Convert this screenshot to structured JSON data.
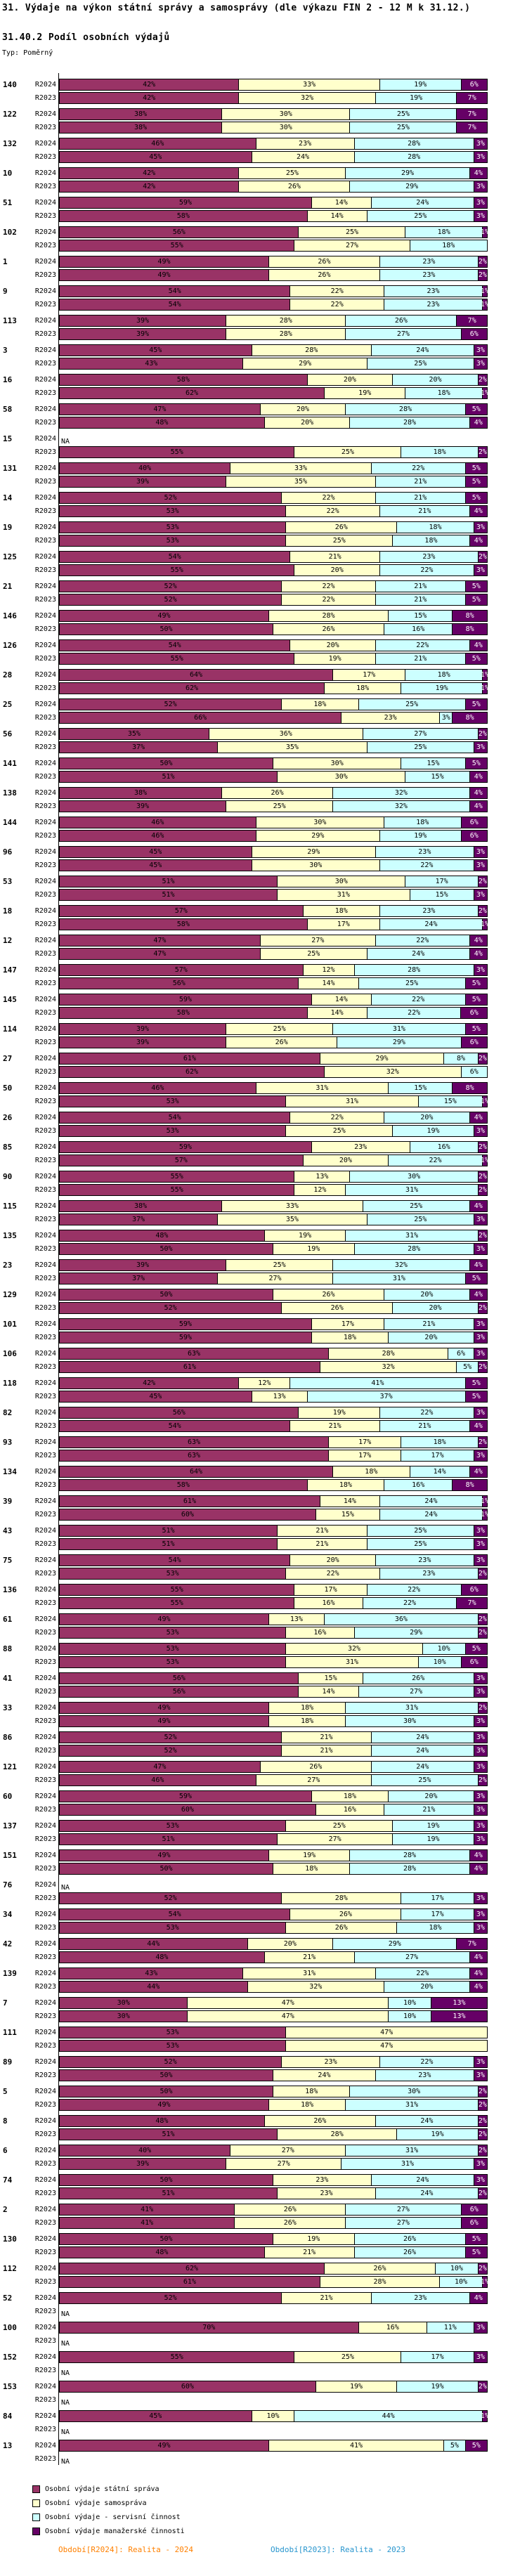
{
  "header": {
    "title": "31. Výdaje na výkon státní správy a samosprávy (dle výkazu FIN 2 - 12 M k 31.12.)",
    "subtitle": "31.40.2 Podíl osobních výdajů",
    "type_label": "Typ: Poměrný"
  },
  "chart_data": {
    "type": "bar",
    "variant": "horizontal-stacked-percent",
    "unit": "%",
    "xlim": [
      0,
      100
    ],
    "grid": false,
    "period_labels": [
      "R2024",
      "R2023"
    ],
    "na_text": "NA",
    "categories": [
      "Osobní výdaje státní správa",
      "Osobní výdaje samospráva",
      "Osobní výdaje - servisní činnost",
      "Osobní výdaje manažerské činnosti"
    ],
    "colors": [
      "#993366",
      "#FFFFCC",
      "#CCFFFF",
      "#660066"
    ],
    "label_text_colors": [
      "#000000",
      "#000000",
      "#000000",
      "#FFFFFF"
    ],
    "rows": [
      {
        "id": "140",
        "R2024": [
          42,
          33,
          19,
          6
        ],
        "R2023": [
          42,
          32,
          19,
          7
        ]
      },
      {
        "id": "122",
        "R2024": [
          38,
          30,
          25,
          7
        ],
        "R2023": [
          38,
          30,
          25,
          7
        ]
      },
      {
        "id": "132",
        "R2024": [
          46,
          23,
          28,
          3
        ],
        "R2023": [
          45,
          24,
          28,
          3
        ]
      },
      {
        "id": "10",
        "R2024": [
          42,
          25,
          29,
          4
        ],
        "R2023": [
          42,
          26,
          29,
          3
        ]
      },
      {
        "id": "51",
        "R2024": [
          59,
          14,
          24,
          3
        ],
        "R2023": [
          58,
          14,
          25,
          3
        ]
      },
      {
        "id": "102",
        "R2024": [
          56,
          25,
          18,
          1
        ],
        "R2023": [
          55,
          27,
          18,
          0
        ]
      },
      {
        "id": "1",
        "R2024": [
          49,
          26,
          23,
          2
        ],
        "R2023": [
          49,
          26,
          23,
          2
        ]
      },
      {
        "id": "9",
        "R2024": [
          54,
          22,
          23,
          1
        ],
        "R2023": [
          54,
          22,
          23,
          1
        ]
      },
      {
        "id": "113",
        "R2024": [
          39,
          28,
          26,
          7
        ],
        "R2023": [
          39,
          28,
          27,
          6
        ]
      },
      {
        "id": "3",
        "R2024": [
          45,
          28,
          24,
          3
        ],
        "R2023": [
          43,
          29,
          25,
          3
        ]
      },
      {
        "id": "16",
        "R2024": [
          58,
          20,
          20,
          2
        ],
        "R2023": [
          62,
          19,
          18,
          1
        ]
      },
      {
        "id": "58",
        "R2024": [
          47,
          20,
          28,
          5
        ],
        "R2023": [
          48,
          20,
          28,
          4
        ]
      },
      {
        "id": "15",
        "R2024": null,
        "R2023": [
          55,
          25,
          18,
          2
        ]
      },
      {
        "id": "131",
        "R2024": [
          40,
          33,
          22,
          5
        ],
        "R2023": [
          39,
          35,
          21,
          5
        ]
      },
      {
        "id": "14",
        "R2024": [
          52,
          22,
          21,
          5
        ],
        "R2023": [
          53,
          22,
          21,
          4
        ]
      },
      {
        "id": "19",
        "R2024": [
          53,
          26,
          18,
          3
        ],
        "R2023": [
          53,
          25,
          18,
          4
        ]
      },
      {
        "id": "125",
        "R2024": [
          54,
          21,
          23,
          2
        ],
        "R2023": [
          55,
          20,
          22,
          3
        ]
      },
      {
        "id": "21",
        "R2024": [
          52,
          22,
          21,
          5
        ],
        "R2023": [
          52,
          22,
          21,
          5
        ]
      },
      {
        "id": "146",
        "R2024": [
          49,
          28,
          15,
          8
        ],
        "R2023": [
          50,
          26,
          16,
          8
        ]
      },
      {
        "id": "126",
        "R2024": [
          54,
          20,
          22,
          4
        ],
        "R2023": [
          55,
          19,
          21,
          5
        ]
      },
      {
        "id": "28",
        "R2024": [
          64,
          17,
          18,
          1
        ],
        "R2023": [
          62,
          18,
          19,
          1
        ]
      },
      {
        "id": "25",
        "R2024": [
          52,
          18,
          25,
          5
        ],
        "R2023": [
          66,
          23,
          3,
          8
        ]
      },
      {
        "id": "56",
        "R2024": [
          35,
          36,
          27,
          2
        ],
        "R2023": [
          37,
          35,
          25,
          3
        ]
      },
      {
        "id": "141",
        "R2024": [
          50,
          30,
          15,
          5
        ],
        "R2023": [
          51,
          30,
          15,
          4
        ]
      },
      {
        "id": "138",
        "R2024": [
          38,
          26,
          32,
          4
        ],
        "R2023": [
          39,
          25,
          32,
          4
        ]
      },
      {
        "id": "144",
        "R2024": [
          46,
          30,
          18,
          6
        ],
        "R2023": [
          46,
          29,
          19,
          6
        ]
      },
      {
        "id": "96",
        "R2024": [
          45,
          29,
          23,
          3
        ],
        "R2023": [
          45,
          30,
          22,
          3
        ]
      },
      {
        "id": "53",
        "R2024": [
          51,
          30,
          17,
          2
        ],
        "R2023": [
          51,
          31,
          15,
          3
        ]
      },
      {
        "id": "18",
        "R2024": [
          57,
          18,
          23,
          2
        ],
        "R2023": [
          58,
          17,
          24,
          1
        ]
      },
      {
        "id": "12",
        "R2024": [
          47,
          27,
          22,
          4
        ],
        "R2023": [
          47,
          25,
          24,
          4
        ]
      },
      {
        "id": "147",
        "R2024": [
          57,
          12,
          28,
          3
        ],
        "R2023": [
          56,
          14,
          25,
          5
        ]
      },
      {
        "id": "145",
        "R2024": [
          59,
          14,
          22,
          5
        ],
        "R2023": [
          58,
          14,
          22,
          6
        ]
      },
      {
        "id": "114",
        "R2024": [
          39,
          25,
          31,
          5
        ],
        "R2023": [
          39,
          26,
          29,
          6
        ]
      },
      {
        "id": "27",
        "R2024": [
          61,
          29,
          8,
          2
        ],
        "R2023": [
          62,
          32,
          6,
          0
        ]
      },
      {
        "id": "50",
        "R2024": [
          46,
          31,
          15,
          8
        ],
        "R2023": [
          53,
          31,
          15,
          1
        ]
      },
      {
        "id": "26",
        "R2024": [
          54,
          22,
          20,
          4
        ],
        "R2023": [
          53,
          25,
          19,
          3
        ]
      },
      {
        "id": "85",
        "R2024": [
          59,
          23,
          16,
          2
        ],
        "R2023": [
          57,
          20,
          22,
          1
        ]
      },
      {
        "id": "90",
        "R2024": [
          55,
          13,
          30,
          2
        ],
        "R2023": [
          55,
          12,
          31,
          2
        ]
      },
      {
        "id": "115",
        "R2024": [
          38,
          33,
          25,
          4
        ],
        "R2023": [
          37,
          35,
          25,
          3
        ]
      },
      {
        "id": "135",
        "R2024": [
          48,
          19,
          31,
          2
        ],
        "R2023": [
          50,
          19,
          28,
          3
        ]
      },
      {
        "id": "23",
        "R2024": [
          39,
          25,
          32,
          4
        ],
        "R2023": [
          37,
          27,
          31,
          5
        ]
      },
      {
        "id": "129",
        "R2024": [
          50,
          26,
          20,
          4
        ],
        "R2023": [
          52,
          26,
          20,
          2
        ]
      },
      {
        "id": "101",
        "R2024": [
          59,
          17,
          21,
          3
        ],
        "R2023": [
          59,
          18,
          20,
          3
        ]
      },
      {
        "id": "106",
        "R2024": [
          63,
          28,
          6,
          3
        ],
        "R2023": [
          61,
          32,
          5,
          2
        ]
      },
      {
        "id": "118",
        "R2024": [
          42,
          12,
          41,
          5
        ],
        "R2023": [
          45,
          13,
          37,
          5
        ]
      },
      {
        "id": "82",
        "R2024": [
          56,
          19,
          22,
          3
        ],
        "R2023": [
          54,
          21,
          21,
          4
        ]
      },
      {
        "id": "93",
        "R2024": [
          63,
          17,
          18,
          2
        ],
        "R2023": [
          63,
          17,
          17,
          3
        ]
      },
      {
        "id": "134",
        "R2024": [
          64,
          18,
          14,
          4
        ],
        "R2023": [
          58,
          18,
          16,
          8
        ]
      },
      {
        "id": "39",
        "R2024": [
          61,
          14,
          24,
          1
        ],
        "R2023": [
          60,
          15,
          24,
          1
        ]
      },
      {
        "id": "43",
        "R2024": [
          51,
          21,
          25,
          3
        ],
        "R2023": [
          51,
          21,
          25,
          3
        ]
      },
      {
        "id": "75",
        "R2024": [
          54,
          20,
          23,
          3
        ],
        "R2023": [
          53,
          22,
          23,
          2
        ]
      },
      {
        "id": "136",
        "R2024": [
          55,
          17,
          22,
          6
        ],
        "R2023": [
          55,
          16,
          22,
          7
        ]
      },
      {
        "id": "61",
        "R2024": [
          49,
          13,
          36,
          2
        ],
        "R2023": [
          53,
          16,
          29,
          2
        ]
      },
      {
        "id": "88",
        "R2024": [
          53,
          32,
          10,
          5
        ],
        "R2023": [
          53,
          31,
          10,
          6
        ]
      },
      {
        "id": "41",
        "R2024": [
          56,
          15,
          26,
          3
        ],
        "R2023": [
          56,
          14,
          27,
          3
        ]
      },
      {
        "id": "33",
        "R2024": [
          49,
          18,
          31,
          2
        ],
        "R2023": [
          49,
          18,
          30,
          3
        ]
      },
      {
        "id": "86",
        "R2024": [
          52,
          21,
          24,
          3
        ],
        "R2023": [
          52,
          21,
          24,
          3
        ]
      },
      {
        "id": "121",
        "R2024": [
          47,
          26,
          24,
          3
        ],
        "R2023": [
          46,
          27,
          25,
          2
        ]
      },
      {
        "id": "60",
        "R2024": [
          59,
          18,
          20,
          3
        ],
        "R2023": [
          60,
          16,
          21,
          3
        ]
      },
      {
        "id": "137",
        "R2024": [
          53,
          25,
          19,
          3
        ],
        "R2023": [
          51,
          27,
          19,
          3
        ]
      },
      {
        "id": "151",
        "R2024": [
          49,
          19,
          28,
          4
        ],
        "R2023": [
          50,
          18,
          28,
          4
        ]
      },
      {
        "id": "76",
        "R2024": null,
        "R2023": [
          52,
          28,
          17,
          3
        ]
      },
      {
        "id": "34",
        "R2024": [
          54,
          26,
          17,
          3
        ],
        "R2023": [
          53,
          26,
          18,
          3
        ]
      },
      {
        "id": "42",
        "R2024": [
          44,
          20,
          29,
          7
        ],
        "R2023": [
          48,
          21,
          27,
          4
        ]
      },
      {
        "id": "139",
        "R2024": [
          43,
          31,
          22,
          4
        ],
        "R2023": [
          44,
          32,
          20,
          4
        ]
      },
      {
        "id": "7",
        "R2024": [
          30,
          47,
          10,
          13
        ],
        "R2023": [
          30,
          47,
          10,
          13
        ]
      },
      {
        "id": "111",
        "R2024": [
          53,
          47,
          0,
          0
        ],
        "R2023": [
          53,
          47,
          0,
          0
        ]
      },
      {
        "id": "89",
        "R2024": [
          52,
          23,
          22,
          3
        ],
        "R2023": [
          50,
          24,
          23,
          3
        ]
      },
      {
        "id": "5",
        "R2024": [
          50,
          18,
          30,
          2
        ],
        "R2023": [
          49,
          18,
          31,
          2
        ]
      },
      {
        "id": "8",
        "R2024": [
          48,
          26,
          24,
          2
        ],
        "R2023": [
          51,
          28,
          19,
          2
        ]
      },
      {
        "id": "6",
        "R2024": [
          40,
          27,
          31,
          2
        ],
        "R2023": [
          39,
          27,
          31,
          3
        ]
      },
      {
        "id": "74",
        "R2024": [
          50,
          23,
          24,
          3
        ],
        "R2023": [
          51,
          23,
          24,
          2
        ]
      },
      {
        "id": "2",
        "R2024": [
          41,
          26,
          27,
          6
        ],
        "R2023": [
          41,
          26,
          27,
          6
        ]
      },
      {
        "id": "130",
        "R2024": [
          50,
          19,
          26,
          5
        ],
        "R2023": [
          48,
          21,
          26,
          5
        ]
      },
      {
        "id": "112",
        "R2024": [
          62,
          26,
          10,
          2
        ],
        "R2023": [
          61,
          28,
          10,
          1
        ]
      },
      {
        "id": "52",
        "R2024": [
          52,
          21,
          23,
          4
        ],
        "R2023": null
      },
      {
        "id": "100",
        "R2024": [
          70,
          16,
          11,
          3
        ],
        "R2023": null
      },
      {
        "id": "152",
        "R2024": [
          55,
          25,
          17,
          3
        ],
        "R2023": null
      },
      {
        "id": "153",
        "R2024": [
          60,
          19,
          19,
          2
        ],
        "R2023": null
      },
      {
        "id": "84",
        "R2024": [
          45,
          10,
          44,
          1
        ],
        "R2023": null
      },
      {
        "id": "13",
        "R2024": [
          49,
          41,
          5,
          5
        ],
        "R2023": null
      }
    ]
  },
  "legend": {
    "items": [
      {
        "label": "Osobní výdaje státní správa",
        "color": "#993366"
      },
      {
        "label": "Osobní výdaje samospráva",
        "color": "#FFFFCC"
      },
      {
        "label": "Osobní výdaje - servisní činnost",
        "color": "#CCFFFF"
      },
      {
        "label": "Osobní výdaje manažerské činnosti",
        "color": "#660066"
      }
    ]
  },
  "footer": {
    "r2024": {
      "text": "Období[R2024]: Realita - 2024",
      "color": "#FF8000"
    },
    "r2023": {
      "text": "Období[R2023]: Realita - 2023",
      "color": "#2996CE"
    }
  }
}
